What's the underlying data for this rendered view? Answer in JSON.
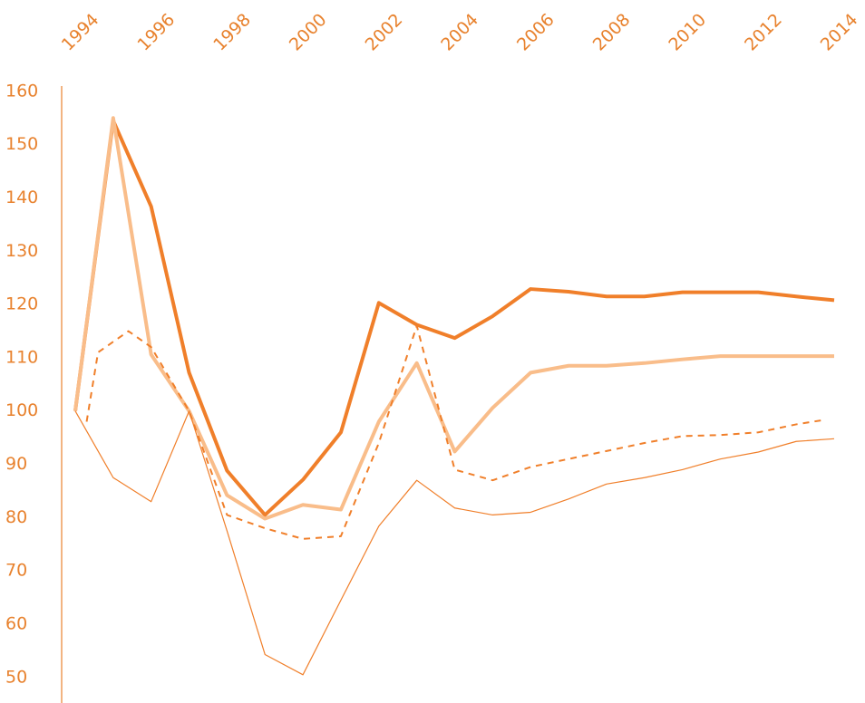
{
  "chart_data": {
    "type": "line",
    "x": [
      1994,
      1995,
      1996,
      1997,
      1998,
      1999,
      2000,
      2001,
      2002,
      2003,
      2004,
      2005,
      2006,
      2007,
      2008,
      2009,
      2010,
      2011,
      2012,
      2013,
      2014
    ],
    "xlim": [
      1994,
      2014
    ],
    "xticks": [
      1994,
      1996,
      1998,
      2000,
      2002,
      2004,
      2006,
      2008,
      2010,
      2012,
      2014
    ],
    "ylim": [
      45.2,
      161
    ],
    "yticks": [
      50,
      60,
      70,
      80,
      90,
      100,
      110,
      120,
      130,
      140,
      150,
      160
    ],
    "series": [
      {
        "color": "#f07f2a",
        "width": 4,
        "values": [
          100,
          154.5,
          138.4,
          107.2,
          88.8,
          80.5,
          87.1,
          96,
          120.3,
          116.2,
          113.7,
          117.8,
          122.9,
          122.4,
          121.5,
          121.5,
          122.3,
          122.3,
          122.3,
          121.5,
          120.8
        ]
      },
      {
        "color": "#f9bd8a",
        "width": 4,
        "values": [
          100,
          155,
          110.6,
          100,
          84.2,
          79.8,
          82.4,
          81.5,
          98,
          109,
          92.4,
          100.6,
          107.2,
          108.5,
          108.5,
          109,
          109.7,
          110.3,
          110.3,
          110.3,
          110.3
        ]
      },
      {
        "color": "#f07f2a",
        "width": 2,
        "dashed": true,
        "x": [
          1994.3,
          1994.6,
          1995.4,
          1996,
          1997,
          1998,
          1999,
          2000,
          2001,
          2002,
          2003,
          2004,
          2005,
          2006,
          2007,
          2008,
          2009,
          2010,
          2011,
          2012,
          2013,
          2013.7
        ],
        "values": [
          98,
          111,
          115,
          112,
          100,
          80.5,
          78,
          76,
          76.5,
          94,
          116,
          89,
          87,
          89.5,
          91,
          92.5,
          94,
          95.3,
          95.5,
          96,
          97.5,
          98.3
        ]
      },
      {
        "color": "#f07f2a",
        "width": 1.2,
        "values": [
          100,
          87.5,
          83,
          100,
          77.5,
          54.3,
          50.5,
          64.5,
          78.4,
          87,
          81.8,
          80.5,
          81,
          83.5,
          86.3,
          87.5,
          89,
          91,
          92.3,
          94.3,
          94.8
        ]
      }
    ]
  }
}
